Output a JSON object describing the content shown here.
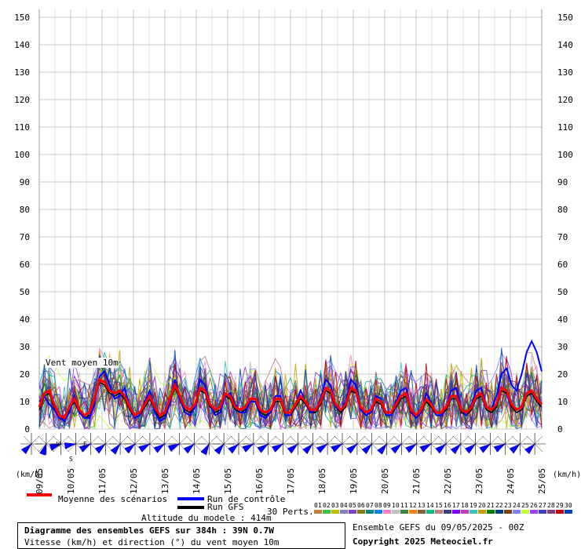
{
  "chart_data": {
    "type": "line",
    "ylim": [
      0,
      150
    ],
    "yticks": [
      0,
      10,
      20,
      30,
      40,
      50,
      60,
      70,
      80,
      90,
      100,
      110,
      120,
      130,
      140,
      150
    ],
    "date_labels": [
      "09/05",
      "10/05",
      "11/05",
      "12/05",
      "13/05",
      "14/05",
      "15/05",
      "16/05",
      "17/05",
      "18/05",
      "19/05",
      "20/05",
      "21/05",
      "22/05",
      "23/05",
      "24/05",
      "25/05"
    ],
    "hours_total": 384,
    "step_hours": 6,
    "series": [
      {
        "name": "Moyenne des scénarios",
        "color": "#ff0000",
        "values": [
          8,
          13,
          14,
          9,
          5,
          4,
          8,
          11,
          7,
          5,
          6,
          11,
          18,
          17,
          14,
          13,
          14,
          12,
          8,
          5,
          6,
          9,
          12,
          8,
          5,
          6,
          11,
          16,
          12,
          8,
          7,
          9,
          15,
          14,
          9,
          7,
          8,
          13,
          12,
          8,
          7,
          8,
          11,
          11,
          7,
          6,
          7,
          11,
          11,
          6,
          6,
          9,
          12,
          10,
          7,
          7,
          10,
          15,
          14,
          9,
          7,
          9,
          15,
          14,
          8,
          6,
          7,
          11,
          10,
          6,
          6,
          9,
          12,
          13,
          7,
          5,
          7,
          11,
          9,
          6,
          6,
          8,
          12,
          12,
          7,
          6,
          8,
          12,
          13,
          8,
          7,
          9,
          15,
          14,
          9,
          7,
          8,
          13,
          14,
          11,
          9
        ]
      },
      {
        "name": "Run de contrôle",
        "color": "#0000ff",
        "values": [
          10,
          12,
          9,
          7,
          4,
          3,
          6,
          12,
          6,
          4,
          4,
          9,
          19,
          21,
          16,
          11,
          12,
          15,
          8,
          4,
          5,
          10,
          14,
          6,
          3,
          4,
          9,
          18,
          11,
          6,
          5,
          8,
          18,
          16,
          9,
          5,
          6,
          12,
          13,
          9,
          6,
          6,
          10,
          10,
          5,
          4,
          6,
          12,
          12,
          5,
          5,
          9,
          14,
          10,
          6,
          7,
          11,
          18,
          16,
          8,
          7,
          10,
          18,
          16,
          7,
          5,
          6,
          12,
          11,
          5,
          5,
          10,
          14,
          15,
          6,
          4,
          6,
          13,
          10,
          5,
          5,
          8,
          14,
          15,
          7,
          5,
          9,
          14,
          15,
          8,
          7,
          12,
          20,
          22,
          16,
          14,
          20,
          28,
          32,
          28,
          21
        ]
      },
      {
        "name": "Run GFS",
        "color": "#000000",
        "values": [
          7,
          12,
          13,
          8,
          5,
          3,
          7,
          10,
          6,
          4,
          5,
          10,
          17,
          16,
          13,
          12,
          13,
          11,
          7,
          4,
          5,
          8,
          11,
          7,
          4,
          5,
          10,
          15,
          11,
          7,
          6,
          8,
          14,
          13,
          8,
          6,
          7,
          12,
          11,
          7,
          6,
          7,
          10,
          10,
          6,
          5,
          6,
          10,
          10,
          5,
          5,
          8,
          11,
          9,
          6,
          6,
          9,
          14,
          13,
          8,
          6,
          8,
          14,
          13,
          7,
          5,
          6,
          10,
          9,
          5,
          5,
          8,
          11,
          12,
          6,
          4,
          6,
          10,
          8,
          5,
          5,
          7,
          11,
          11,
          6,
          5,
          7,
          11,
          12,
          7,
          6,
          8,
          14,
          13,
          8,
          6,
          7,
          12,
          13,
          10,
          8
        ]
      }
    ],
    "perturbation_colors": [
      "#c08040",
      "#40c040",
      "#c0c000",
      "#8080c0",
      "#8040c0",
      "#808000",
      "#008080",
      "#0080ff",
      "#ff80c0",
      "#c0c0c0",
      "#408040",
      "#ff8000",
      "#806040",
      "#00c080",
      "#c08080",
      "#404080",
      "#8000ff",
      "#c040c0",
      "#40c0c0",
      "#c0a000",
      "#008000",
      "#004080",
      "#804000",
      "#8080ff",
      "#c0ff40",
      "#a040ff",
      "#4040c0",
      "#804080",
      "#c00000",
      "#0040c0"
    ],
    "wind_directions": [
      225,
      200,
      250,
      260,
      240,
      230,
      220,
      230,
      240,
      235,
      245,
      230,
      210,
      220,
      230,
      240,
      235,
      240,
      230,
      225,
      235,
      240,
      230,
      225,
      220,
      230,
      235,
      240,
      230,
      225,
      230,
      235,
      240,
      230,
      225
    ],
    "wind_speed_scale": "km/h"
  },
  "legend": {
    "mean_label": "Moyenne des scénarios",
    "control_label": "Run de contrôle",
    "gfs_label": "Run GFS",
    "perts_label": "30 Perts.",
    "pert_numbers": [
      "01",
      "02",
      "03",
      "04",
      "05",
      "06",
      "07",
      "08",
      "09",
      "10",
      "11",
      "12",
      "13",
      "14",
      "15",
      "16",
      "17",
      "18",
      "19",
      "20",
      "21",
      "22",
      "23",
      "24",
      "25",
      "26",
      "27",
      "28",
      "29",
      "30"
    ],
    "altitude": "Altitude du modele : 414m"
  },
  "annotation": "Vent moyen 10m",
  "unit_left": "(km/h)",
  "unit_right": "(km/h)",
  "compass": {
    "w": "W",
    "e": "E",
    "s": "S"
  },
  "info_box": {
    "title": "Diagramme des ensembles GEFS sur 384h : 39N 0.7W",
    "subtitle": "Vitesse (km/h) et direction (°) du vent moyen 10m"
  },
  "run_info": "Ensemble GEFS du 09/05/2025 - 00Z",
  "copyright": "Copyright 2025 Meteociel.fr"
}
